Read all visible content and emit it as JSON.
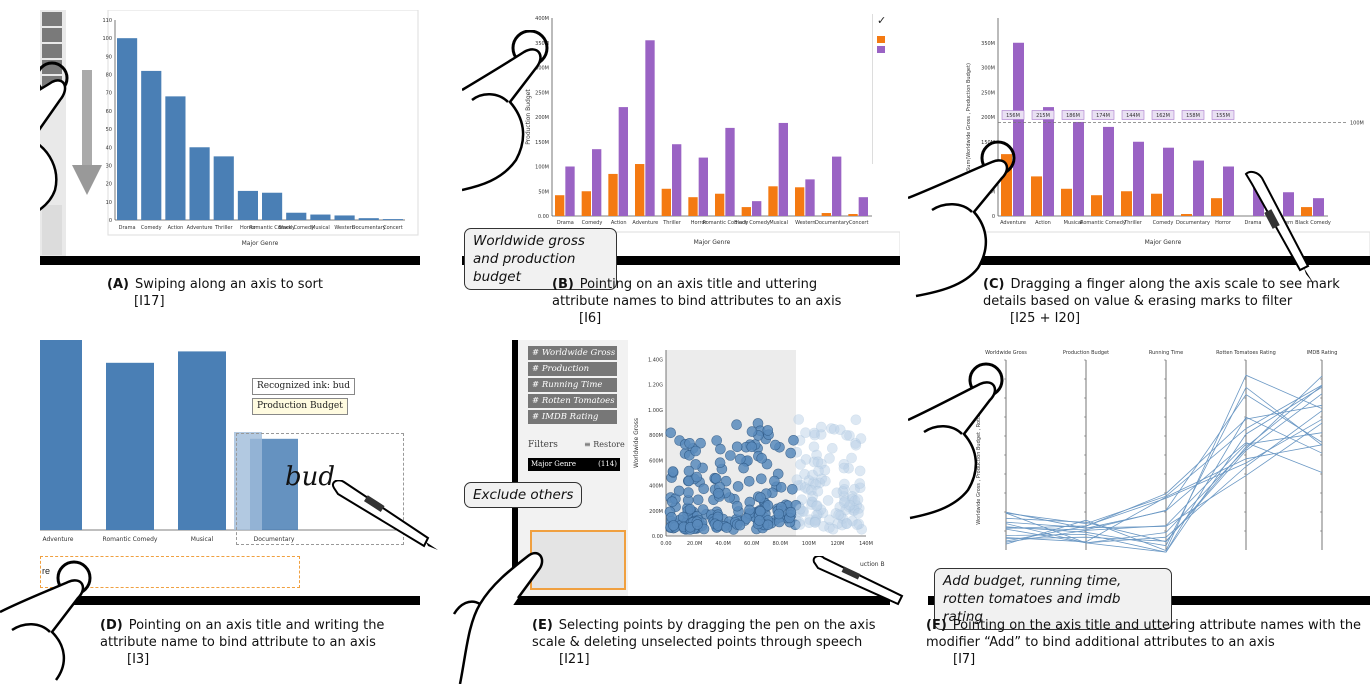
{
  "colors": {
    "blue": "#4a7fb5",
    "orange": "#f47a12",
    "purple": "#9a63c4",
    "pointBlue": "#5a8bbd"
  },
  "panels": [
    {
      "letter": "(A)",
      "text": "Swiping along an axis to sort",
      "ref": "[I17]"
    },
    {
      "letter": "(B)",
      "text": "Pointing on an axis title and uttering attribute names to bind attributes to an axis",
      "ref": "[I6]"
    },
    {
      "letter": "(C)",
      "text": "Dragging a finger along the axis scale to see mark details based on value & erasing marks to filter",
      "ref": "[I25 + I20]"
    },
    {
      "letter": "(D)",
      "text": "Pointing on an axis title and writing the attribute name to bind attribute to an axis",
      "ref": "[I3]"
    },
    {
      "letter": "(E)",
      "text": "Selecting points by dragging the pen on the axis scale & deleting unselected points through speech",
      "ref": "[I21]"
    },
    {
      "letter": "(F)",
      "text": "Pointing on the axis title and uttering attribute names with the modifier “Add” to bind additional attributes to an axis",
      "ref": "[I7]"
    }
  ],
  "speech": {
    "b": "Worldwide gross and production budget",
    "e": "Exclude others",
    "f": "Add budget, running time, rotten tomatoes and imdb rating"
  },
  "panelA": {
    "xlabel": "Major Genre",
    "categories": [
      "Drama",
      "Comedy",
      "Action",
      "Adventure",
      "Thriller",
      "Horror",
      "Romantic Comedy",
      "Black Comedy",
      "Musical",
      "Western",
      "Documentary",
      "Concert"
    ],
    "values": [
      100,
      82,
      68,
      40,
      35,
      16,
      15,
      4,
      3,
      2.5,
      1,
      0.5
    ],
    "yticks": [
      "0",
      "10",
      "20",
      "30",
      "40",
      "50",
      "60",
      "70",
      "80",
      "90",
      "100",
      "110"
    ]
  },
  "panelB": {
    "xlabel": "Major Genre",
    "ylabel": "Production Budget",
    "categories": [
      "Drama",
      "Comedy",
      "Action",
      "Adventure",
      "Thriller",
      "Horror",
      "Romantic Comedy",
      "Black Comedy",
      "Musical",
      "Western",
      "Documentary",
      "Concert"
    ],
    "series": [
      {
        "values": [
          42,
          50,
          85,
          105,
          55,
          38,
          45,
          18,
          60,
          58,
          6,
          4
        ]
      },
      {
        "values": [
          100,
          135,
          220,
          355,
          145,
          118,
          178,
          30,
          188,
          74,
          120,
          38
        ]
      }
    ],
    "yticks": [
      "0.00",
      "50M",
      "100M",
      "150M",
      "200M",
      "250M",
      "300M",
      "350M",
      "400M"
    ],
    "checkmark": "✓"
  },
  "panelC": {
    "xlabel": "Major Genre",
    "ylabel": "Sum(Worldwide Gross , Production Budget)",
    "categories": [
      "Adventure",
      "Action",
      "Musical",
      "Romantic Comedy",
      "Thriller",
      "Comedy",
      "Documentary",
      "Horror",
      "Drama",
      "Western",
      "Black Comedy"
    ],
    "series": [
      {
        "values": [
          125,
          80,
          55,
          42,
          50,
          45,
          4,
          36,
          0,
          0,
          18
        ]
      },
      {
        "values": [
          350,
          220,
          190,
          180,
          150,
          138,
          112,
          100,
          70,
          48,
          36
        ]
      }
    ],
    "markLabels": [
      "156M",
      "215M",
      "186M",
      "174M",
      "144M",
      "162M",
      "158M",
      "155M"
    ],
    "thresholdLabel": "100M",
    "yticks": [
      "0",
      "50M",
      "100M",
      "150M",
      "200M",
      "250M",
      "300M",
      "350M"
    ]
  },
  "panelD": {
    "categories": [
      "Adventure",
      "Romantic Comedy",
      "Musical",
      "Documentary"
    ],
    "values": [
      100,
      88,
      94,
      48
    ],
    "recognized": "Recognized ink: bud",
    "suggestion": "Production Budget",
    "ink": "bud",
    "axisTitlePartial": "re"
  },
  "panelE": {
    "attributes": [
      "Worldwide Gross",
      "Production Budget",
      "Running Time",
      "Rotten Tomatoes Rating",
      "IMDB Rating"
    ],
    "filtersLabel": "Filters",
    "restore": "Restore",
    "filterItem": "Major Genre",
    "filterCount": "(114)",
    "ylabel": "Worldwide Gross",
    "xlabelPartial": "uction B",
    "yticks": [
      "0.00",
      "200M",
      "400M",
      "600M",
      "800M",
      "1.00G",
      "1.20G",
      "1.40G"
    ],
    "xticks": [
      "0.00",
      "20.0M",
      "40.0M",
      "60.0M",
      "80.0M",
      "100M",
      "120M",
      "140M"
    ]
  },
  "panelF": {
    "axes": [
      "Worldwide Gross",
      "Production Budget",
      "Running Time",
      "Rotten Tomatoes Rating",
      "IMDB Rating"
    ],
    "ylabel": "Worldwide Gross , Production Budget , Rotten Tomatoes"
  }
}
